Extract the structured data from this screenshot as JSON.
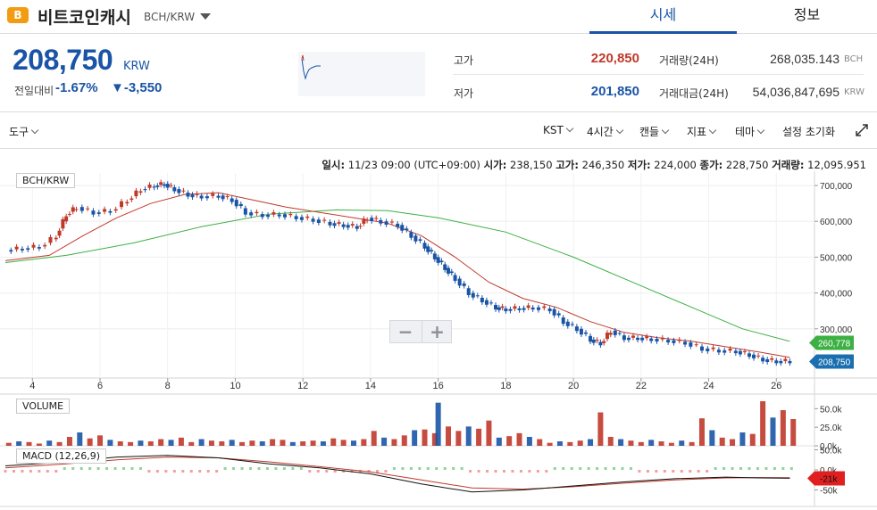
{
  "header": {
    "coin_icon": "B",
    "coin_name": "비트코인캐시",
    "pair_code": "BCH/KRW",
    "tabs": [
      "시세",
      "정보"
    ]
  },
  "summary": {
    "price": "208,750",
    "price_unit": "KRW",
    "prev_label": "전일대비",
    "change_pct": "-1.67%",
    "change_amt": "▼-3,550",
    "high_label": "고가",
    "high": "220,850",
    "low_label": "저가",
    "low": "201,850",
    "volume_label": "거래량(24H)",
    "volume": "268,035.143",
    "volume_unit": "BCH",
    "amount_label": "거래대금(24H)",
    "amount": "54,036,847,695",
    "amount_unit": "KRW",
    "colors": {
      "up": "#c0392b",
      "down": "#1a54a6"
    }
  },
  "toolbar": {
    "tools": "도구",
    "timezone": "KST",
    "interval": "4시간",
    "chart_type": "캔들",
    "indicators": "지표",
    "theme": "테마",
    "settings": "설정 초기화"
  },
  "info_line": {
    "date_label": "일시:",
    "date": "11/23 09:00 (UTC+09:00)",
    "open_label": "시가:",
    "open": "238,150",
    "high_label": "고가:",
    "high": "246,350",
    "low_label": "저가:",
    "low": "224,000",
    "close_label": "종가:",
    "close": "228,750",
    "vol_label": "거래량:",
    "vol": "12,095.951"
  },
  "chart_labels": {
    "main": "BCH/KRW",
    "volume": "VOLUME",
    "macd": "MACD (12,26,9)"
  },
  "chart_data": {
    "type": "candlestick",
    "x_ticks": [
      "4",
      "6",
      "8",
      "10",
      "12",
      "14",
      "16",
      "18",
      "20",
      "22",
      "24",
      "26"
    ],
    "x_tick_days": [
      4,
      6,
      8,
      10,
      12,
      14,
      16,
      18,
      20,
      22,
      24,
      26
    ],
    "price_ticks": [
      "700,000",
      "600,000",
      "500,000",
      "400,000",
      "300,000"
    ],
    "price_tick_values": [
      700000,
      600000,
      500000,
      400000,
      300000
    ],
    "price_range": [
      180000,
      735000
    ],
    "day_range": [
      3.2,
      26.6
    ],
    "ma_short_label": "208,750",
    "ma_long_label": "260,778",
    "ma_long_value": 260778,
    "last_price_value": 208750,
    "volume_ticks": [
      "50.0k",
      "25.0k",
      "0.0k"
    ],
    "volume_tick_values": [
      50000,
      25000,
      0
    ],
    "volume_range": [
      0,
      60000
    ],
    "macd_ticks": [
      "50.0k",
      "0.0k",
      "-50k"
    ],
    "macd_tick_values": [
      50000,
      0,
      -50000
    ],
    "macd_range": [
      -60000,
      60000
    ],
    "macd_last_label": "-21k",
    "macd_last_value": -21000,
    "close_series": [
      [
        3.2,
        520000
      ],
      [
        3.7,
        525000
      ],
      [
        4.2,
        530000
      ],
      [
        4.7,
        560000
      ],
      [
        5.0,
        620000
      ],
      [
        5.3,
        640000
      ],
      [
        5.8,
        625000
      ],
      [
        6.3,
        630000
      ],
      [
        6.8,
        660000
      ],
      [
        7.2,
        690000
      ],
      [
        7.6,
        700000
      ],
      [
        7.9,
        705000
      ],
      [
        8.2,
        690000
      ],
      [
        8.6,
        675000
      ],
      [
        9.0,
        670000
      ],
      [
        9.5,
        672000
      ],
      [
        9.9,
        660000
      ],
      [
        10.3,
        625000
      ],
      [
        10.8,
        618000
      ],
      [
        11.3,
        620000
      ],
      [
        11.8,
        612000
      ],
      [
        12.3,
        605000
      ],
      [
        12.8,
        595000
      ],
      [
        13.2,
        590000
      ],
      [
        13.6,
        585000
      ],
      [
        13.9,
        610000
      ],
      [
        14.3,
        600000
      ],
      [
        14.8,
        590000
      ],
      [
        15.2,
        560000
      ],
      [
        15.6,
        530000
      ],
      [
        15.9,
        500000
      ],
      [
        16.2,
        470000
      ],
      [
        16.5,
        440000
      ],
      [
        16.9,
        400000
      ],
      [
        17.3,
        380000
      ],
      [
        17.7,
        360000
      ],
      [
        18.0,
        355000
      ],
      [
        18.4,
        358000
      ],
      [
        18.8,
        360000
      ],
      [
        19.3,
        355000
      ],
      [
        19.7,
        320000
      ],
      [
        20.1,
        300000
      ],
      [
        20.5,
        270000
      ],
      [
        20.8,
        260000
      ],
      [
        21.1,
        295000
      ],
      [
        21.5,
        275000
      ],
      [
        21.9,
        275000
      ],
      [
        22.3,
        272000
      ],
      [
        22.8,
        268000
      ],
      [
        23.3,
        262000
      ],
      [
        23.8,
        245000
      ],
      [
        24.3,
        240000
      ],
      [
        24.8,
        238000
      ],
      [
        25.2,
        228000
      ],
      [
        25.6,
        215000
      ],
      [
        26.0,
        210000
      ],
      [
        26.4,
        210000
      ]
    ],
    "ma_short": [
      [
        3.2,
        490000
      ],
      [
        4.5,
        505000
      ],
      [
        5.5,
        560000
      ],
      [
        6.5,
        610000
      ],
      [
        7.5,
        650000
      ],
      [
        8.5,
        675000
      ],
      [
        9.5,
        680000
      ],
      [
        10.5,
        660000
      ],
      [
        11.5,
        640000
      ],
      [
        12.5,
        625000
      ],
      [
        13.5,
        610000
      ],
      [
        14.5,
        595000
      ],
      [
        15.5,
        560000
      ],
      [
        16.5,
        500000
      ],
      [
        17.5,
        430000
      ],
      [
        18.5,
        385000
      ],
      [
        19.5,
        360000
      ],
      [
        20.5,
        320000
      ],
      [
        21.5,
        290000
      ],
      [
        22.5,
        275000
      ],
      [
        23.5,
        265000
      ],
      [
        24.5,
        250000
      ],
      [
        25.5,
        235000
      ],
      [
        26.4,
        220000
      ]
    ],
    "ma_long": [
      [
        3.2,
        485000
      ],
      [
        5.0,
        505000
      ],
      [
        7.0,
        540000
      ],
      [
        9.0,
        585000
      ],
      [
        11.0,
        620000
      ],
      [
        13.0,
        632000
      ],
      [
        14.5,
        630000
      ],
      [
        16.0,
        610000
      ],
      [
        18.0,
        570000
      ],
      [
        20.0,
        500000
      ],
      [
        22.0,
        420000
      ],
      [
        23.5,
        360000
      ],
      [
        25.0,
        300000
      ],
      [
        26.4,
        265000
      ]
    ],
    "volume_bars": [
      [
        3.3,
        4000
      ],
      [
        3.6,
        6000
      ],
      [
        3.9,
        5000
      ],
      [
        4.2,
        3000
      ],
      [
        4.5,
        7000
      ],
      [
        4.8,
        5000
      ],
      [
        5.1,
        12000
      ],
      [
        5.4,
        18000
      ],
      [
        5.7,
        10000
      ],
      [
        6.0,
        14000
      ],
      [
        6.3,
        8000
      ],
      [
        6.6,
        6000
      ],
      [
        6.9,
        5000
      ],
      [
        7.2,
        7000
      ],
      [
        7.5,
        6000
      ],
      [
        7.8,
        9000
      ],
      [
        8.1,
        8000
      ],
      [
        8.4,
        11000
      ],
      [
        8.7,
        5000
      ],
      [
        9.0,
        9000
      ],
      [
        9.3,
        7000
      ],
      [
        9.6,
        6000
      ],
      [
        9.9,
        8000
      ],
      [
        10.2,
        5000
      ],
      [
        10.5,
        7000
      ],
      [
        10.8,
        6000
      ],
      [
        11.1,
        9000
      ],
      [
        11.4,
        8000
      ],
      [
        11.7,
        5000
      ],
      [
        12.0,
        6000
      ],
      [
        12.3,
        7000
      ],
      [
        12.6,
        6000
      ],
      [
        12.9,
        10000
      ],
      [
        13.2,
        8000
      ],
      [
        13.5,
        7000
      ],
      [
        13.8,
        9000
      ],
      [
        14.1,
        20000
      ],
      [
        14.4,
        11000
      ],
      [
        14.7,
        9000
      ],
      [
        15.0,
        14000
      ],
      [
        15.3,
        21000
      ],
      [
        15.6,
        22000
      ],
      [
        15.9,
        17000
      ],
      [
        16.0,
        58000
      ],
      [
        16.3,
        26000
      ],
      [
        16.6,
        20000
      ],
      [
        16.9,
        26000
      ],
      [
        17.2,
        23000
      ],
      [
        17.5,
        34000
      ],
      [
        17.8,
        11000
      ],
      [
        18.1,
        13000
      ],
      [
        18.4,
        17000
      ],
      [
        18.7,
        12000
      ],
      [
        19.0,
        9000
      ],
      [
        19.3,
        4000
      ],
      [
        19.6,
        6000
      ],
      [
        19.9,
        5000
      ],
      [
        20.2,
        7000
      ],
      [
        20.5,
        9000
      ],
      [
        20.8,
        45000
      ],
      [
        21.1,
        12000
      ],
      [
        21.4,
        9000
      ],
      [
        21.7,
        7000
      ],
      [
        22.0,
        5000
      ],
      [
        22.3,
        8000
      ],
      [
        22.6,
        6000
      ],
      [
        22.9,
        4000
      ],
      [
        23.2,
        7000
      ],
      [
        23.5,
        5000
      ],
      [
        23.8,
        37000
      ],
      [
        24.1,
        21000
      ],
      [
        24.4,
        11000
      ],
      [
        24.7,
        9000
      ],
      [
        25.0,
        18000
      ],
      [
        25.3,
        16000
      ],
      [
        25.6,
        60000
      ],
      [
        25.9,
        38000
      ],
      [
        26.2,
        48000
      ],
      [
        26.5,
        36000
      ]
    ],
    "macd_line": [
      [
        3.2,
        10000
      ],
      [
        5.0,
        20000
      ],
      [
        6.5,
        32000
      ],
      [
        8.0,
        36000
      ],
      [
        9.5,
        30000
      ],
      [
        11.0,
        15000
      ],
      [
        12.5,
        5000
      ],
      [
        14.0,
        -10000
      ],
      [
        15.5,
        -35000
      ],
      [
        17.0,
        -55000
      ],
      [
        18.5,
        -50000
      ],
      [
        20.0,
        -40000
      ],
      [
        21.5,
        -30000
      ],
      [
        23.0,
        -22000
      ],
      [
        24.5,
        -18000
      ],
      [
        25.5,
        -20000
      ],
      [
        26.4,
        -21000
      ]
    ],
    "signal_line": [
      [
        3.2,
        5000
      ],
      [
        5.0,
        15000
      ],
      [
        6.5,
        25000
      ],
      [
        8.0,
        32000
      ],
      [
        9.5,
        30000
      ],
      [
        11.0,
        20000
      ],
      [
        12.5,
        8000
      ],
      [
        14.0,
        -5000
      ],
      [
        15.5,
        -25000
      ],
      [
        17.0,
        -45000
      ],
      [
        18.5,
        -48000
      ],
      [
        20.0,
        -42000
      ],
      [
        21.5,
        -33000
      ],
      [
        23.0,
        -25000
      ],
      [
        24.5,
        -20000
      ],
      [
        25.5,
        -19000
      ],
      [
        26.4,
        -19500
      ]
    ]
  }
}
